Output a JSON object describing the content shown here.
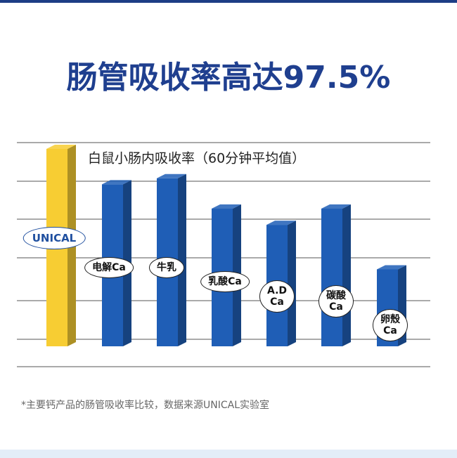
{
  "chart_data": {
    "type": "bar3d",
    "title": "肠管吸收率高达97.5%",
    "subtitle": "白鼠小肠内吸收率（60分钟平均值）",
    "footnote": "*主要钙产品的肠管吸收率比较，数据来源UNICAL实验室",
    "categories": [
      "UNICAL",
      "电解Ca",
      "牛乳",
      "乳酸Ca",
      "A.D\nCa",
      "碳酸\nCa",
      "卵殼\nCa"
    ],
    "values": [
      97.5,
      80,
      83,
      68,
      60,
      68,
      38
    ],
    "colors": [
      "#f7cd33",
      "#1f5eb6",
      "#1f5eb6",
      "#1f5eb6",
      "#1f5eb6",
      "#1f5eb6",
      "#1f5eb6"
    ],
    "ylim": [
      0,
      100
    ]
  }
}
